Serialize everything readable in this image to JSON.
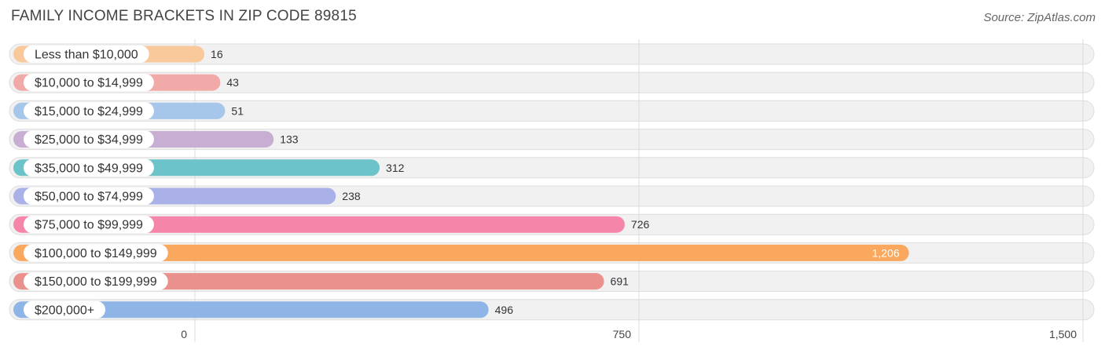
{
  "header": {
    "title": "FAMILY INCOME BRACKETS IN ZIP CODE 89815",
    "source": "Source: ZipAtlas.com"
  },
  "chart_data": {
    "type": "bar",
    "orientation": "horizontal",
    "title": "FAMILY INCOME BRACKETS IN ZIP CODE 89815",
    "categories": [
      "Less than $10,000",
      "$10,000 to $14,999",
      "$15,000 to $24,999",
      "$25,000 to $34,999",
      "$35,000 to $49,999",
      "$50,000 to $74,999",
      "$75,000 to $99,999",
      "$100,000 to $149,999",
      "$150,000 to $199,999",
      "$200,000+"
    ],
    "values": [
      16,
      43,
      51,
      133,
      312,
      238,
      726,
      1206,
      691,
      496
    ],
    "value_labels": [
      "16",
      "43",
      "51",
      "133",
      "312",
      "238",
      "726",
      "1,206",
      "691",
      "496"
    ],
    "colors": [
      "#f9c89b",
      "#f2aaa8",
      "#a6c7ea",
      "#c9aed3",
      "#6cc3c9",
      "#aab1e8",
      "#f585a9",
      "#f9a85d",
      "#ea918e",
      "#8fb5e6"
    ],
    "xlim": [
      0,
      1500
    ],
    "xticks": [
      0,
      750,
      1500
    ],
    "xtick_labels": [
      "0",
      "750",
      "1,500"
    ],
    "grid": true,
    "legend": "none"
  }
}
